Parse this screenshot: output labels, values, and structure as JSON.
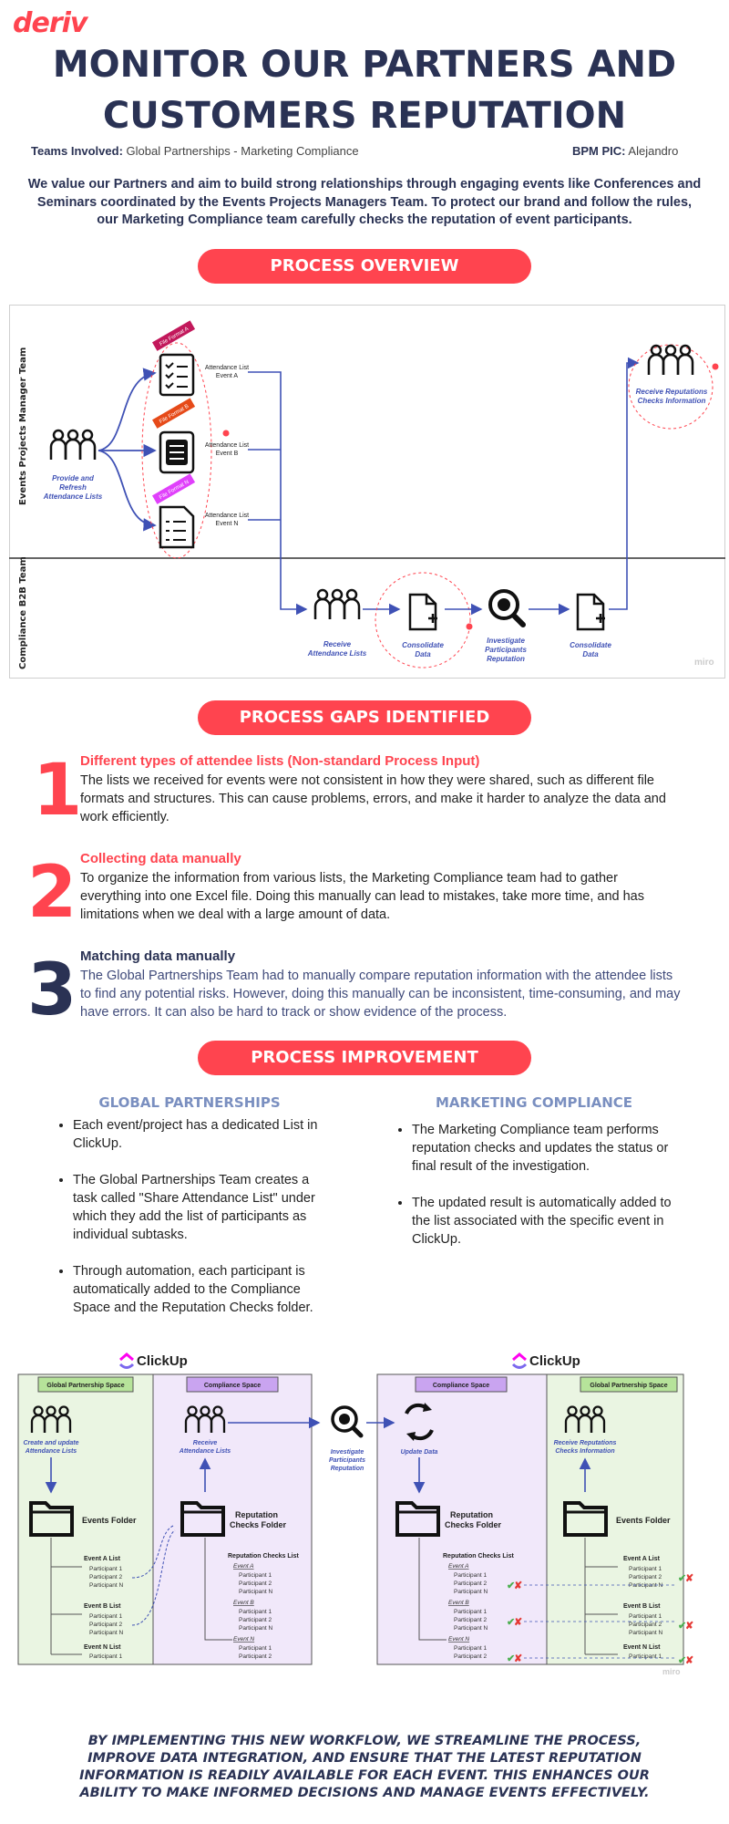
{
  "brand": {
    "logo": "deriv",
    "accent": "#ff444f",
    "navy": "#2a3254"
  },
  "header": {
    "title_line1": "MONITOR OUR PARTNERS AND",
    "title_line2": "CUSTOMERS REPUTATION",
    "teams_label": "Teams Involved:",
    "teams_value": "Global Partnerships - Marketing Compliance",
    "pic_label": "BPM PIC:",
    "pic_value": "Alejandro",
    "intro": "We value our Partners and aim to build strong relationships through engaging events like Conferences and Seminars coordinated by the Events Projects Managers Team. To protect our brand and follow the rules, our Marketing Compliance team carefully checks the reputation of event participants."
  },
  "overview": {
    "pill": "PROCESS OVERVIEW",
    "lane_top": "Events Projects Manager Team",
    "lane_bottom": "Compliance B2B Team",
    "provide": [
      "Provide and",
      "Refresh",
      "Attendance Lists"
    ],
    "lists": [
      {
        "tag": "File Format A",
        "line1": "Attendance List",
        "line2": "Event A"
      },
      {
        "tag": "File Format B",
        "line1": "Attendance List",
        "line2": "Event B"
      },
      {
        "tag": "File Format N",
        "line1": "Attendance List",
        "line2": "Event N"
      }
    ],
    "receive_info": [
      "Receive Reputations",
      "Checks Information"
    ],
    "receive_lists": [
      "Receive",
      "Attendance Lists"
    ],
    "consolidate1": [
      "Consolidate",
      "Data"
    ],
    "investigate": [
      "Investigate",
      "Participants",
      "Reputation"
    ],
    "consolidate2": [
      "Consolidate",
      "Data"
    ],
    "watermark": "miro"
  },
  "gaps": {
    "pill": "PROCESS GAPS IDENTIFIED",
    "items": [
      {
        "num": "1",
        "title": "Different types of attendee lists (Non-standard Process Input)",
        "text": "The lists we received for events were not consistent in how they were shared, such as different file formats and structures. This can cause problems, errors, and make it harder to analyze the data and work efficiently.",
        "color": "#ff444f"
      },
      {
        "num": "2",
        "title": "Collecting data manually",
        "text": "To organize the information from various lists, the Marketing Compliance team had to gather everything into one Excel file. Doing this manually can lead to mistakes, take more time, and has limitations when we deal with a large amount of data.",
        "color": "#ff444f"
      },
      {
        "num": "3",
        "title": "Matching data manually",
        "text": "The Global Partnerships Team had to manually compare reputation information with the attendee lists to find any potential risks. However, doing this manually can be inconsistent, time-consuming, and may have errors. It can also be hard to track or show evidence of the process.",
        "color": "#2a3254"
      }
    ]
  },
  "improvement": {
    "pill": "PROCESS IMPROVEMENT",
    "gp_head": "GLOBAL PARTNERSHIPS",
    "gp_bullets": [
      "Each event/project has a dedicated List in ClickUp.",
      "The Global Partnerships Team creates a task called \"Share Attendance List\" under which they add the list of participants as individual subtasks.",
      "Through automation, each participant is automatically added to the Compliance Space and the Reputation Checks folder."
    ],
    "mc_head": "MARKETING COMPLIANCE",
    "mc_bullets": [
      "The Marketing Compliance team performs reputation checks and updates the status or final result of the investigation.",
      "The updated result is automatically added to the list associated with the specific event in ClickUp."
    ]
  },
  "clickup": {
    "brand": "ClickUp",
    "gp_space": "Global Partnership Space",
    "comp_space": "Compliance Space",
    "create_update": [
      "Create and update",
      "Attendance Lists"
    ],
    "receive": [
      "Receive",
      "Attendance Lists"
    ],
    "investigate": [
      "Investigate",
      "Participants",
      "Reputation"
    ],
    "update_data": "Update Data",
    "receive_info": [
      "Receive Reputations",
      "Checks Information"
    ],
    "events_folder": "Events Folder",
    "rep_folder": [
      "Reputation",
      "Checks Folder"
    ],
    "rep_list": "Reputation Checks List",
    "event_lists": [
      "Event A List",
      "Event B List",
      "Event N List"
    ],
    "events": [
      "Event A",
      "Event B",
      "Event N"
    ],
    "participants": [
      "Participant 1",
      "Participant 2",
      "Participant N"
    ],
    "watermark": "miro"
  },
  "footer": "BY IMPLEMENTING THIS NEW WORKFLOW, WE STREAMLINE THE PROCESS, IMPROVE DATA INTEGRATION, AND ENSURE THAT THE LATEST REPUTATION INFORMATION IS READILY AVAILABLE FOR EACH EVENT. THIS ENHANCES OUR ABILITY TO MAKE INFORMED DECISIONS AND MANAGE EVENTS EFFECTIVELY."
}
